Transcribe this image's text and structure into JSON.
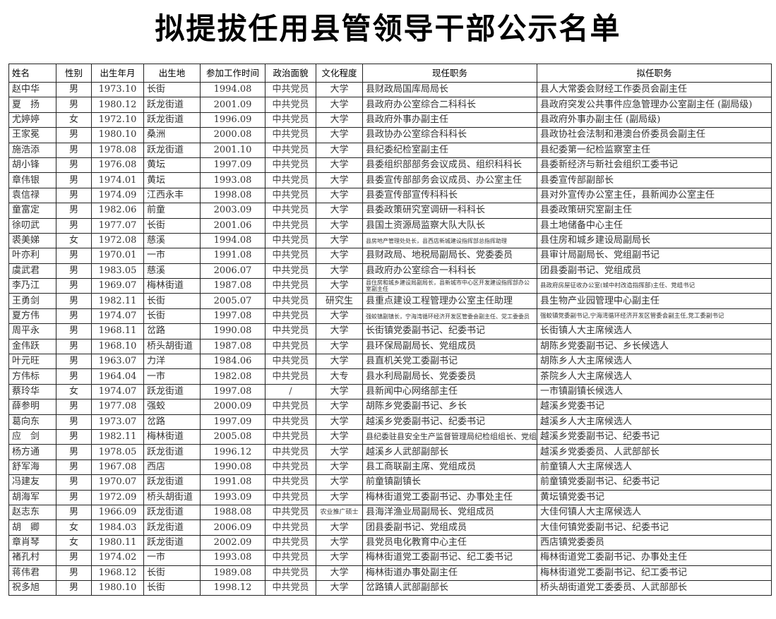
{
  "title": "拟提拔任用县管领导干部公示名单",
  "columns": [
    "姓名",
    "性别",
    "出生年月",
    "出生地",
    "参加工作时间",
    "政治面貌",
    "文化程度",
    "现任职务",
    "拟任职务"
  ],
  "rows": [
    [
      "赵中华",
      "男",
      "1973.10",
      "长街",
      "1994.08",
      "中共党员",
      "大学",
      "县财政局国库局局长",
      "县人大常委会财经工作委员会副主任"
    ],
    [
      "夏　扬",
      "男",
      "1980.12",
      "跃龙街道",
      "2001.09",
      "中共党员",
      "大学",
      "县政府办公室综合二科科长",
      "县政府突发公共事件应急管理办公室副主任 (副局级)"
    ],
    [
      "尤婷婷",
      "女",
      "1972.10",
      "跃龙街道",
      "1996.09",
      "中共党员",
      "大学",
      "县政府外事办副主任",
      "县政府外事办副主任 (副局级)"
    ],
    [
      "王家冕",
      "男",
      "1980.10",
      "桑洲",
      "2000.08",
      "中共党员",
      "大学",
      "县政协办公室综合科科长",
      "县政协社会法制和港澳台侨委员会副主任"
    ],
    [
      "施浩添",
      "男",
      "1978.08",
      "跃龙街道",
      "2001.10",
      "中共党员",
      "大学",
      "县纪委纪检室副主任",
      "县纪委第一纪检监察室主任"
    ],
    [
      "胡小锋",
      "男",
      "1976.08",
      "黄坛",
      "1997.09",
      "中共党员",
      "大学",
      "县委组织部部务会议成员、组织科科长",
      "县委新经济与新社会组织工委书记"
    ],
    [
      "章伟银",
      "男",
      "1974.01",
      "黄坛",
      "1993.08",
      "中共党员",
      "大学",
      "县委宣传部部务会议成员、办公室主任",
      "县委宣传部副部长"
    ],
    [
      "袁信禄",
      "男",
      "1974.09",
      "江西永丰",
      "1998.08",
      "中共党员",
      "大学",
      "县委宣传部宣传科科长",
      "县对外宣传办公室主任，县新闻办公室主任"
    ],
    [
      "童富定",
      "男",
      "1982.06",
      "前童",
      "2003.09",
      "中共党员",
      "大学",
      "县委政策研究室调研一科科长",
      "县委政策研究室副主任"
    ],
    [
      "徐叨武",
      "男",
      "1977.07",
      "长街",
      "2001.06",
      "中共党员",
      "大学",
      "县国土资源局监察大队大队长",
      "县土地储备中心主任"
    ],
    [
      "裘美娣",
      "女",
      "1972.08",
      "慈溪",
      "1994.08",
      "中共党员",
      "大学",
      "县房地产管理处处长，县西店新城建设指挥部总指挥助理",
      "县住房和城乡建设局副局长"
    ],
    [
      "叶亦利",
      "男",
      "1970.01",
      "一市",
      "1991.08",
      "中共党员",
      "大学",
      "县财政局、地税局副局长、党委委员",
      "县审计局副局长、党组副书记"
    ],
    [
      "虞武君",
      "男",
      "1983.05",
      "慈溪",
      "2006.07",
      "中共党员",
      "大学",
      "县政府办公室综合一科科长",
      "团县委副书记、党组成员"
    ],
    [
      "李乃江",
      "男",
      "1969.07",
      "梅林街道",
      "1987.08",
      "中共党员",
      "大学",
      "县住房和城乡建设局副局长，县新城市中心区开发建设指挥部办公室副主任",
      "县政府房屋征收办公室(城中村改造指挥部)主任、党组书记"
    ],
    [
      "王勇剑",
      "男",
      "1982.11",
      "长街",
      "2005.07",
      "中共党员",
      "研究生",
      "县重点建设工程管理办公室主任助理",
      "县生物产业园管理中心副主任"
    ],
    [
      "夏方伟",
      "男",
      "1974.07",
      "长街",
      "1997.08",
      "中共党员",
      "大学",
      "强蛟镇副镇长，宁海湾循环经济开发区管委会副主任、党工委委员",
      "强蛟镇党委副书记,宁海湾循环经济开发区管委会副主任,党工委副书记"
    ],
    [
      "周平永",
      "男",
      "1968.11",
      "岔路",
      "1990.08",
      "中共党员",
      "大学",
      "长街镇党委副书记、纪委书记",
      "长街镇人大主席候选人"
    ],
    [
      "金伟跃",
      "男",
      "1968.10",
      "桥头胡街道",
      "1987.08",
      "中共党员",
      "大学",
      "县环保局副局长、党组成员",
      "胡陈乡党委副书记、乡长候选人"
    ],
    [
      "叶元旺",
      "男",
      "1963.07",
      "力洋",
      "1984.06",
      "中共党员",
      "大学",
      "县直机关党工委副书记",
      "胡陈乡人大主席候选人"
    ],
    [
      "方伟标",
      "男",
      "1964.04",
      "一市",
      "1982.08",
      "中共党员",
      "大专",
      "县水利局副局长、党委委员",
      "茶院乡人大主席候选人"
    ],
    [
      "蔡玲华",
      "女",
      "1974.07",
      "跃龙街道",
      "1997.08",
      "/",
      "大学",
      "县新闻中心网络部主任",
      "一市镇副镇长候选人"
    ],
    [
      "薛参明",
      "男",
      "1977.08",
      "强蛟",
      "2000.09",
      "中共党员",
      "大学",
      "胡陈乡党委副书记、乡长",
      "越溪乡党委书记"
    ],
    [
      "葛向东",
      "男",
      "1973.07",
      "岔路",
      "1997.09",
      "中共党员",
      "大学",
      "越溪乡党委副书记、纪委书记",
      "越溪乡人大主席候选人"
    ],
    [
      "应　剑",
      "男",
      "1982.11",
      "梅林街道",
      "2005.08",
      "中共党员",
      "大学",
      "县纪委驻县安全生产监督管理局纪检组组长、党组成员",
      "越溪乡党委副书记、纪委书记"
    ],
    [
      "杨方通",
      "男",
      "1978.05",
      "跃龙街道",
      "1996.12",
      "中共党员",
      "大学",
      "越溪乡人武部副部长",
      "越溪乡党委委员、人武部部长"
    ],
    [
      "舒军海",
      "男",
      "1967.08",
      "西店",
      "1990.08",
      "中共党员",
      "大学",
      "县工商联副主席、党组成员",
      "前童镇人大主席候选人"
    ],
    [
      "冯建友",
      "男",
      "1970.07",
      "跃龙街道",
      "1991.08",
      "中共党员",
      "大学",
      "前童镇副镇长",
      "前童镇党委副书记、纪委书记"
    ],
    [
      "胡海军",
      "男",
      "1972.09",
      "桥头胡街道",
      "1993.09",
      "中共党员",
      "大学",
      "梅林街道党工委副书记、办事处主任",
      "黄坛镇党委书记"
    ],
    [
      "赵志东",
      "男",
      "1966.09",
      "跃龙街道",
      "1988.08",
      "中共党员",
      "农业推广硕士",
      "县海洋渔业局副局长、党组成员",
      "大佳何镇人大主席候选人"
    ],
    [
      "胡　卿",
      "女",
      "1984.03",
      "跃龙街道",
      "2006.09",
      "中共党员",
      "大学",
      "团县委副书记、党组成员",
      "大佳何镇党委副书记、纪委书记"
    ],
    [
      "章肖琴",
      "女",
      "1980.11",
      "跃龙街道",
      "2002.09",
      "中共党员",
      "大学",
      "县党员电化教育中心主任",
      "西店镇党委委员"
    ],
    [
      "褚孔村",
      "男",
      "1974.02",
      "一市",
      "1993.08",
      "中共党员",
      "大学",
      "梅林街道党工委副书记、纪工委书记",
      "梅林街道党工委副书记、办事处主任"
    ],
    [
      "蒋伟君",
      "男",
      "1968.12",
      "长街",
      "1989.08",
      "中共党员",
      "大学",
      "梅林街道办事处副主任",
      "梅林街道党工委副书记、纪工委书记"
    ],
    [
      "祝多旭",
      "男",
      "1980.10",
      "长街",
      "1998.12",
      "中共党员",
      "大学",
      "岔路镇人武部副部长",
      "桥头胡街道党工委委员、人武部部长"
    ]
  ]
}
